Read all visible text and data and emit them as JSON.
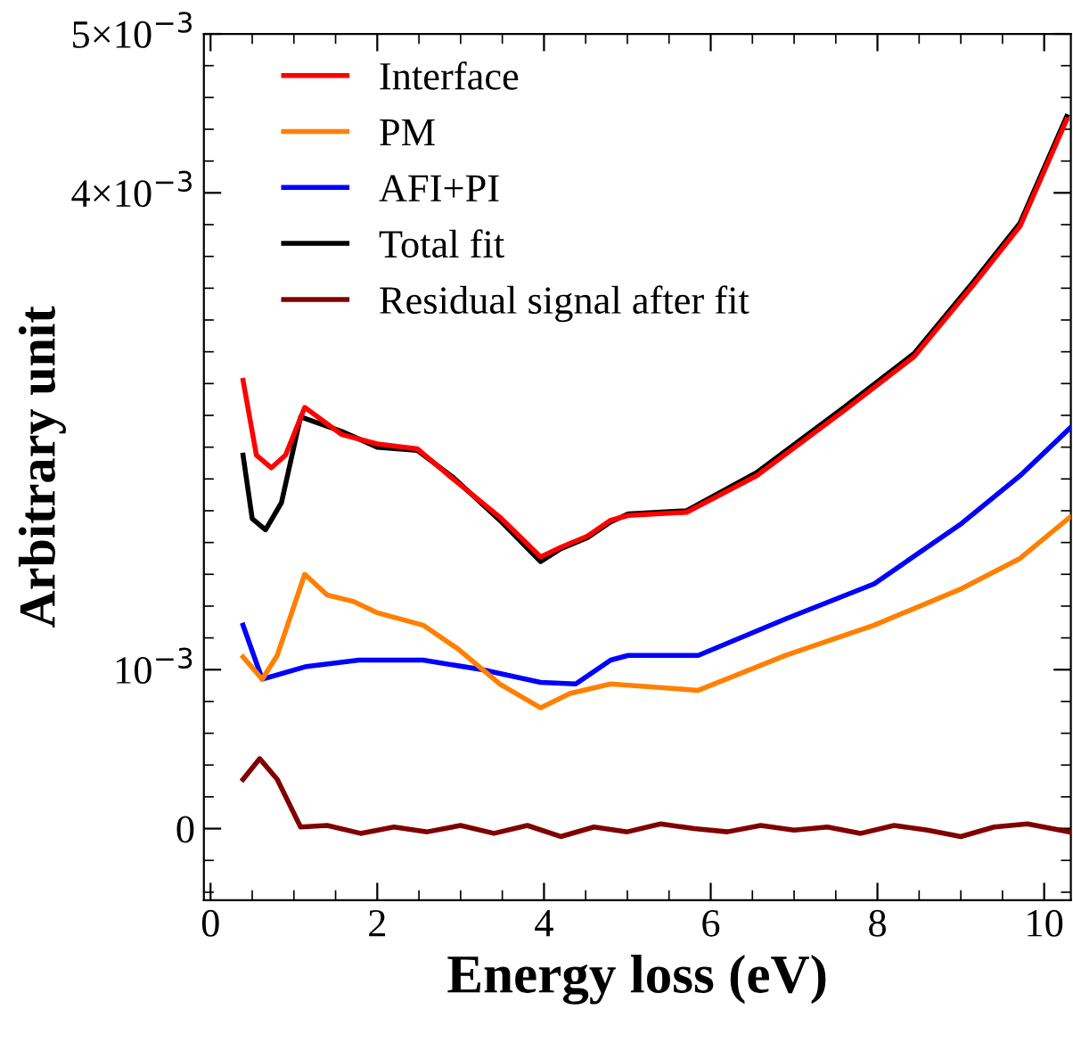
{
  "chart_data": {
    "type": "line",
    "xlabel": "Energy loss (eV)",
    "ylabel": "Arbitrary unit",
    "xlim": [
      -0.08,
      10.32
    ],
    "xticks": [
      0,
      2,
      4,
      6,
      8,
      10
    ],
    "ylim": [
      -0.00045,
      0.005
    ],
    "yticks": [
      {
        "value": 0,
        "label": "0"
      },
      {
        "value": 0.001,
        "label": "10$^{−3}$"
      },
      {
        "value": 0.004,
        "label": "4×10$^{−3}$"
      },
      {
        "value": 0.005,
        "label": "5×10$^{−3}$"
      }
    ],
    "legend": "top left",
    "grid": false,
    "marker": "none",
    "line_style": "solid",
    "series": [
      {
        "name": "Interface",
        "color": "#ff0000",
        "x": [
          0.39,
          0.55,
          0.73,
          0.9,
          1.13,
          1.57,
          2.0,
          2.48,
          2.91,
          3.47,
          3.96,
          4.2,
          4.52,
          4.8,
          5.01,
          5.71,
          6.55,
          7.6,
          8.44,
          9.15,
          9.71,
          10.27
        ],
        "values": [
          0.00282,
          0.00235,
          0.00227,
          0.00235,
          0.00265,
          0.00248,
          0.00242,
          0.00239,
          0.0022,
          0.00196,
          0.00171,
          0.00177,
          0.00184,
          0.00194,
          0.00197,
          0.00199,
          0.00222,
          0.00263,
          0.00297,
          0.00342,
          0.00379,
          0.00446
        ]
      },
      {
        "name": "PM",
        "color": "#ff8000",
        "x": [
          0.39,
          0.62,
          0.8,
          1.13,
          1.4,
          1.71,
          1.99,
          2.55,
          2.97,
          3.47,
          3.96,
          4.31,
          4.8,
          5.85,
          6.9,
          7.96,
          9.01,
          9.71,
          10.31
        ],
        "values": [
          0.00108,
          0.00094,
          0.00109,
          0.0016,
          0.00147,
          0.00143,
          0.00136,
          0.00128,
          0.00113,
          0.00091,
          0.00076,
          0.00085,
          0.00091,
          0.00087,
          0.00109,
          0.00128,
          0.00151,
          0.0017,
          0.00196
        ]
      },
      {
        "name": "AFI+PI",
        "color": "#0000ff",
        "x": [
          0.39,
          0.62,
          1.15,
          1.78,
          2.55,
          3.26,
          3.96,
          4.38,
          4.8,
          5.01,
          5.85,
          6.9,
          7.96,
          9.01,
          9.71,
          10.31
        ],
        "values": [
          0.00128,
          0.00094,
          0.00102,
          0.00106,
          0.00106,
          0.001,
          0.00092,
          0.00091,
          0.00106,
          0.00109,
          0.00109,
          0.00132,
          0.00154,
          0.00192,
          0.00222,
          0.00252
        ]
      },
      {
        "name": "Total fit",
        "color": "#000000",
        "x": [
          0.39,
          0.5,
          0.66,
          0.85,
          1.08,
          1.57,
          2.0,
          2.48,
          2.91,
          3.47,
          3.96,
          4.2,
          4.52,
          4.8,
          5.01,
          5.71,
          6.55,
          7.6,
          8.44,
          9.15,
          9.71,
          10.27
        ],
        "values": [
          0.00235,
          0.00195,
          0.00188,
          0.00205,
          0.00259,
          0.0025,
          0.0024,
          0.00238,
          0.00221,
          0.00194,
          0.00168,
          0.00176,
          0.00183,
          0.00193,
          0.00198,
          0.002,
          0.00224,
          0.00265,
          0.00299,
          0.00344,
          0.00381,
          0.00448
        ]
      },
      {
        "name": "Residual signal after fit",
        "color": "#800000",
        "x": [
          0.39,
          0.59,
          0.8,
          1.08,
          1.4,
          1.8,
          2.2,
          2.6,
          3.0,
          3.4,
          3.8,
          4.2,
          4.6,
          5.0,
          5.4,
          5.8,
          6.2,
          6.6,
          7.0,
          7.4,
          7.8,
          8.2,
          8.6,
          9.0,
          9.4,
          9.8,
          10.3
        ],
        "values": [
          0.00031,
          0.00044,
          0.00031,
          1e-05,
          2e-05,
          -3e-05,
          1e-05,
          -2e-05,
          2e-05,
          -3e-05,
          2e-05,
          -5e-05,
          1e-05,
          -2e-05,
          3e-05,
          0.0,
          -2e-05,
          2e-05,
          -1e-05,
          1e-05,
          -3e-05,
          2e-05,
          -1e-05,
          -5e-05,
          1e-05,
          3e-05,
          -2e-05
        ]
      }
    ]
  }
}
